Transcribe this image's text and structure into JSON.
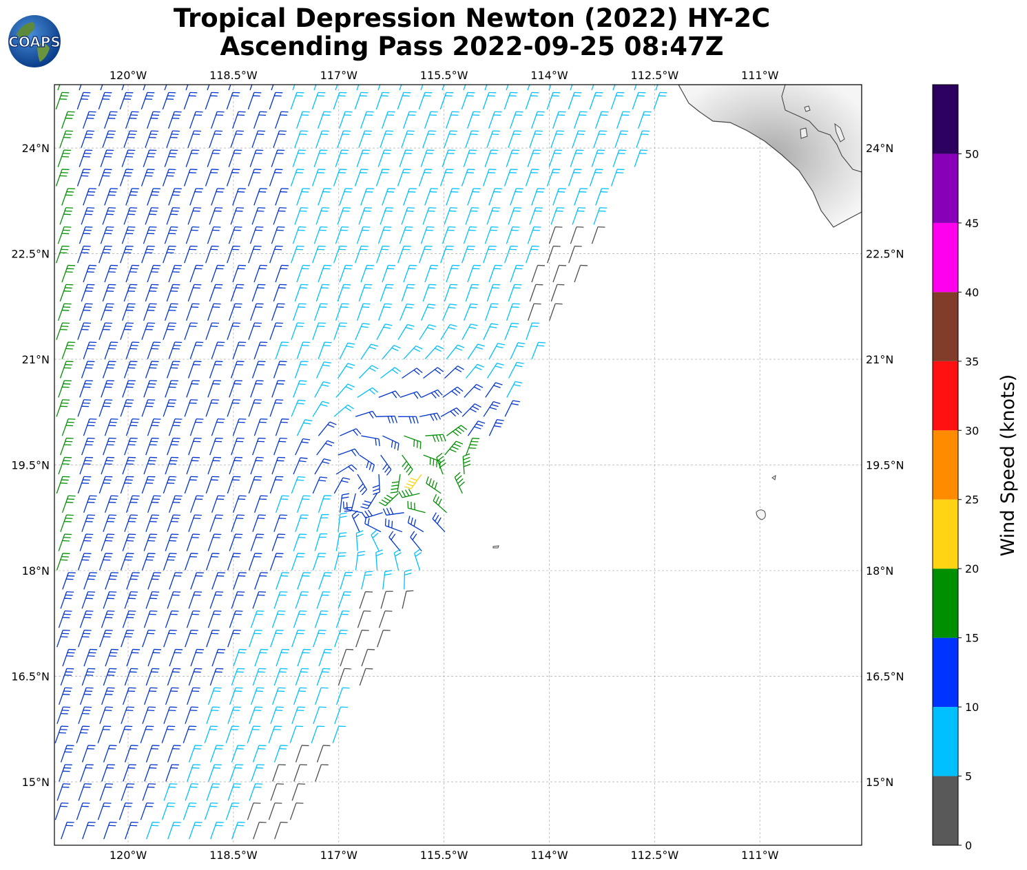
{
  "title_line1": "Tropical Depression Newton (2022) HY-2C",
  "title_line2": "Ascending Pass 2022-09-25 08:47Z",
  "logo_text": "COAPS",
  "lon_ticks": [
    {
      "value": -120,
      "label": "120°W"
    },
    {
      "value": -118.5,
      "label": "118.5°W"
    },
    {
      "value": -117,
      "label": "117°W"
    },
    {
      "value": -115.5,
      "label": "115.5°W"
    },
    {
      "value": -114,
      "label": "114°W"
    },
    {
      "value": -112.5,
      "label": "112.5°W"
    },
    {
      "value": -111,
      "label": "111°W"
    }
  ],
  "lat_ticks": [
    {
      "value": 24,
      "label": "24°N"
    },
    {
      "value": 22.5,
      "label": "22.5°N"
    },
    {
      "value": 21,
      "label": "21°N"
    },
    {
      "value": 19.5,
      "label": "19.5°N"
    },
    {
      "value": 18,
      "label": "18°N"
    },
    {
      "value": 16.5,
      "label": "16.5°N"
    },
    {
      "value": 15,
      "label": "15°N"
    }
  ],
  "map_extent": {
    "lon_min": -121.05,
    "lon_max": -109.55,
    "lat_min": 14.1,
    "lat_max": 24.9
  },
  "storm_center": {
    "lon": -115.7,
    "lat": 19.45
  },
  "colorbar": {
    "label": "Wind Speed (knots)",
    "ticks": [
      "0",
      "5",
      "10",
      "15",
      "20",
      "25",
      "30",
      "35",
      "40",
      "45",
      "50"
    ],
    "bins": [
      {
        "min": 0,
        "max": 5,
        "color": "#595959"
      },
      {
        "min": 5,
        "max": 10,
        "color": "#00bfff"
      },
      {
        "min": 10,
        "max": 15,
        "color": "#0033ff"
      },
      {
        "min": 15,
        "max": 20,
        "color": "#008f00"
      },
      {
        "min": 20,
        "max": 25,
        "color": "#ffd412"
      },
      {
        "min": 25,
        "max": 30,
        "color": "#ff8c00"
      },
      {
        "min": 30,
        "max": 35,
        "color": "#ff1010"
      },
      {
        "min": 35,
        "max": 40,
        "color": "#823c2a"
      },
      {
        "min": 40,
        "max": 45,
        "color": "#ff00ee"
      },
      {
        "min": 45,
        "max": 50,
        "color": "#8800b8"
      },
      {
        "min": 50,
        "max": 55,
        "color": "#2b005e"
      }
    ]
  },
  "barb_colors": {
    "calm": "#4d4d4d",
    "light": "#00bfff",
    "moderate": "#0033cc",
    "fresh": "#008f00",
    "strong": "#ffd412"
  }
}
